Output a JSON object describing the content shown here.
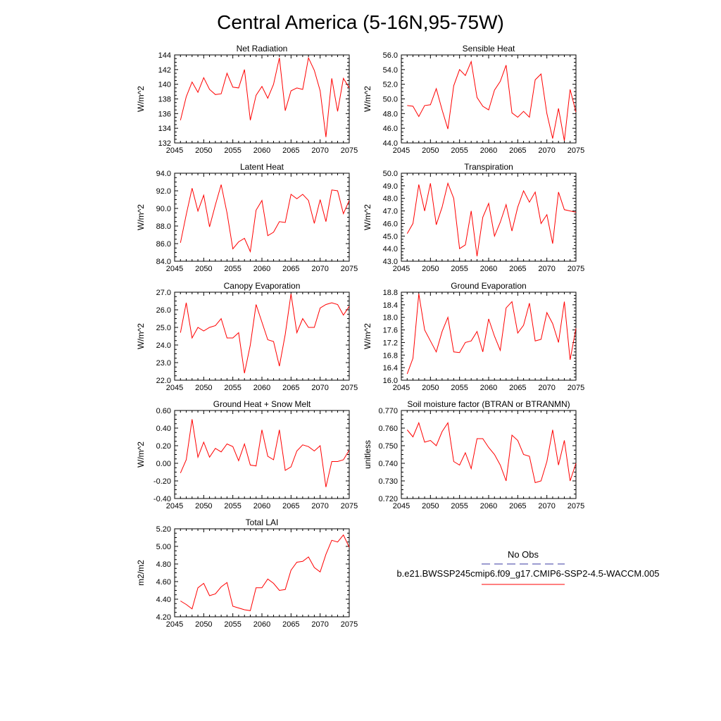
{
  "title": "Central America (5-16N,95-75W)",
  "colors": {
    "series": "#ff0000",
    "axis": "#000000",
    "obs": "#3a3aa0"
  },
  "legend": {
    "obs_label": "No Obs",
    "model_label": "b.e21.BWSSP245cmip6.f09_g17.CMIP6-SSP2-4.5-WACCM.005"
  },
  "chart_data": [
    {
      "type": "line",
      "title": "Net Radiation",
      "ylabel": "W/m^2",
      "xlim": [
        2045,
        2075
      ],
      "ylim": [
        132,
        144
      ],
      "xticks": [
        "2045",
        "2050",
        "2055",
        "2060",
        "2065",
        "2070",
        "2075"
      ],
      "yticks": [
        "132",
        "134",
        "136",
        "138",
        "140",
        "142",
        "144"
      ],
      "x": [
        2046,
        2047,
        2048,
        2049,
        2050,
        2051,
        2052,
        2053,
        2054,
        2055,
        2056,
        2057,
        2058,
        2059,
        2060,
        2061,
        2062,
        2063,
        2064,
        2065,
        2066,
        2067,
        2068,
        2069,
        2070,
        2071,
        2072,
        2073,
        2074,
        2075
      ],
      "y": [
        135.1,
        138.3,
        140.3,
        138.9,
        140.9,
        139.3,
        138.6,
        138.7,
        141.5,
        139.6,
        139.5,
        142.0,
        135.1,
        138.5,
        139.7,
        138.1,
        140.0,
        143.6,
        136.4,
        139.1,
        139.5,
        139.3,
        143.6,
        141.9,
        139.1,
        132.8,
        140.8,
        136.3,
        140.8,
        139.5
      ]
    },
    {
      "type": "line",
      "title": "Sensible Heat",
      "ylabel": "W/m^2",
      "xlim": [
        2045,
        2075
      ],
      "ylim": [
        44.0,
        56.0
      ],
      "xticks": [
        "2045",
        "2050",
        "2055",
        "2060",
        "2065",
        "2070",
        "2075"
      ],
      "yticks": [
        "44.0",
        "46.0",
        "48.0",
        "50.0",
        "52.0",
        "54.0",
        "56.0"
      ],
      "x": [
        2046,
        2047,
        2048,
        2049,
        2050,
        2051,
        2052,
        2053,
        2054,
        2055,
        2056,
        2057,
        2058,
        2059,
        2060,
        2061,
        2062,
        2063,
        2064,
        2065,
        2066,
        2067,
        2068,
        2069,
        2070,
        2071,
        2072,
        2073,
        2074,
        2075
      ],
      "y": [
        49.1,
        49.0,
        47.6,
        49.1,
        49.2,
        51.4,
        48.5,
        45.9,
        51.8,
        54.0,
        53.2,
        55.1,
        50.2,
        49.0,
        48.5,
        51.2,
        52.4,
        54.6,
        48.1,
        47.5,
        48.3,
        47.5,
        52.6,
        53.4,
        48.0,
        44.6,
        48.7,
        44.3,
        51.3,
        48.2
      ]
    },
    {
      "type": "line",
      "title": "Latent Heat",
      "ylabel": "W/m^2",
      "xlim": [
        2045,
        2075
      ],
      "ylim": [
        84.0,
        94.0
      ],
      "xticks": [
        "2045",
        "2050",
        "2055",
        "2060",
        "2065",
        "2070",
        "2075"
      ],
      "yticks": [
        "84.0",
        "86.0",
        "88.0",
        "90.0",
        "92.0",
        "94.0"
      ],
      "x": [
        2046,
        2047,
        2048,
        2049,
        2050,
        2051,
        2052,
        2053,
        2054,
        2055,
        2056,
        2057,
        2058,
        2059,
        2060,
        2061,
        2062,
        2063,
        2064,
        2065,
        2066,
        2067,
        2068,
        2069,
        2070,
        2071,
        2072,
        2073,
        2074,
        2075
      ],
      "y": [
        86.1,
        89.3,
        92.3,
        89.7,
        91.5,
        87.9,
        90.4,
        92.7,
        89.5,
        85.4,
        86.2,
        86.6,
        85.1,
        89.8,
        90.9,
        86.9,
        87.3,
        88.5,
        88.4,
        91.6,
        91.1,
        91.6,
        90.9,
        88.3,
        91.0,
        88.5,
        92.1,
        92.0,
        89.4,
        90.9
      ]
    },
    {
      "type": "line",
      "title": "Transpiration",
      "ylabel": "W/m^2",
      "xlim": [
        2045,
        2075
      ],
      "ylim": [
        43.0,
        50.0
      ],
      "xticks": [
        "2045",
        "2050",
        "2055",
        "2060",
        "2065",
        "2070",
        "2075"
      ],
      "yticks": [
        "43.0",
        "44.0",
        "45.0",
        "46.0",
        "47.0",
        "48.0",
        "49.0",
        "50.0"
      ],
      "x": [
        2046,
        2047,
        2048,
        2049,
        2050,
        2051,
        2052,
        2053,
        2054,
        2055,
        2056,
        2057,
        2058,
        2059,
        2060,
        2061,
        2062,
        2063,
        2064,
        2065,
        2066,
        2067,
        2068,
        2069,
        2070,
        2071,
        2072,
        2073,
        2074,
        2075
      ],
      "y": [
        45.2,
        46.0,
        49.1,
        47.0,
        49.2,
        45.9,
        47.3,
        49.2,
        48.0,
        44.0,
        44.3,
        47.0,
        43.4,
        46.5,
        47.6,
        45.0,
        46.1,
        47.5,
        45.4,
        47.3,
        48.6,
        47.7,
        48.5,
        46.0,
        46.7,
        44.4,
        48.5,
        47.1,
        47.0,
        46.9
      ]
    },
    {
      "type": "line",
      "title": "Canopy Evaporation",
      "ylabel": "W/m^2",
      "xlim": [
        2045,
        2075
      ],
      "ylim": [
        22.0,
        27.0
      ],
      "xticks": [
        "2045",
        "2050",
        "2055",
        "2060",
        "2065",
        "2070",
        "2075"
      ],
      "yticks": [
        "22.0",
        "23.0",
        "24.0",
        "25.0",
        "26.0",
        "27.0"
      ],
      "x": [
        2046,
        2047,
        2048,
        2049,
        2050,
        2051,
        2052,
        2053,
        2054,
        2055,
        2056,
        2057,
        2058,
        2059,
        2060,
        2061,
        2062,
        2063,
        2064,
        2065,
        2066,
        2067,
        2068,
        2069,
        2070,
        2071,
        2072,
        2073,
        2074,
        2075
      ],
      "y": [
        24.7,
        26.4,
        24.4,
        25.0,
        24.8,
        25.0,
        25.1,
        25.5,
        24.4,
        24.4,
        24.7,
        22.4,
        24.0,
        26.3,
        25.3,
        24.3,
        24.2,
        22.8,
        24.6,
        26.9,
        24.7,
        25.5,
        25.0,
        25.0,
        26.1,
        26.3,
        26.4,
        26.3,
        25.7,
        26.2
      ]
    },
    {
      "type": "line",
      "title": "Ground Evaporation",
      "ylabel": "W/m^2",
      "xlim": [
        2045,
        2075
      ],
      "ylim": [
        16.0,
        18.8
      ],
      "xticks": [
        "2045",
        "2050",
        "2055",
        "2060",
        "2065",
        "2070",
        "2075"
      ],
      "yticks": [
        "16.0",
        "16.4",
        "16.8",
        "17.2",
        "17.6",
        "18.0",
        "18.4",
        "18.8"
      ],
      "x": [
        2046,
        2047,
        2048,
        2049,
        2050,
        2051,
        2052,
        2053,
        2054,
        2055,
        2056,
        2057,
        2058,
        2059,
        2060,
        2061,
        2062,
        2063,
        2064,
        2065,
        2066,
        2067,
        2068,
        2069,
        2070,
        2071,
        2072,
        2073,
        2074,
        2075
      ],
      "y": [
        16.2,
        16.7,
        18.75,
        17.6,
        17.25,
        16.9,
        17.55,
        18.0,
        16.9,
        16.88,
        17.2,
        17.25,
        17.55,
        16.9,
        17.95,
        17.4,
        16.95,
        18.3,
        18.5,
        17.5,
        17.75,
        18.45,
        17.25,
        17.3,
        18.15,
        17.8,
        17.2,
        18.5,
        16.65,
        17.65
      ]
    },
    {
      "type": "line",
      "title": "Ground Heat + Snow Melt",
      "ylabel": "W/m^2",
      "xlim": [
        2045,
        2075
      ],
      "ylim": [
        -0.4,
        0.6
      ],
      "xticks": [
        "2045",
        "2050",
        "2055",
        "2060",
        "2065",
        "2070",
        "2075"
      ],
      "yticks": [
        "-0.40",
        "-0.20",
        "0.00",
        "0.20",
        "0.40",
        "0.60"
      ],
      "x": [
        2046,
        2047,
        2048,
        2049,
        2050,
        2051,
        2052,
        2053,
        2054,
        2055,
        2056,
        2057,
        2058,
        2059,
        2060,
        2061,
        2062,
        2063,
        2064,
        2065,
        2066,
        2067,
        2068,
        2069,
        2070,
        2071,
        2072,
        2073,
        2074,
        2075
      ],
      "y": [
        -0.11,
        0.04,
        0.5,
        0.07,
        0.24,
        0.07,
        0.17,
        0.13,
        0.22,
        0.19,
        0.03,
        0.22,
        -0.02,
        -0.03,
        0.38,
        0.08,
        0.04,
        0.38,
        -0.08,
        -0.04,
        0.14,
        0.21,
        0.19,
        0.14,
        0.2,
        -0.27,
        0.02,
        0.02,
        0.04,
        0.15
      ]
    },
    {
      "type": "line",
      "title": "Soil moisture factor (BTRAN or BTRANMN)",
      "ylabel": "unitless",
      "xlim": [
        2045,
        2075
      ],
      "ylim": [
        0.72,
        0.77
      ],
      "xticks": [
        "2045",
        "2050",
        "2055",
        "2060",
        "2065",
        "2070",
        "2075"
      ],
      "yticks": [
        "0.720",
        "0.730",
        "0.740",
        "0.750",
        "0.760",
        "0.770"
      ],
      "x": [
        2046,
        2047,
        2048,
        2049,
        2050,
        2051,
        2052,
        2053,
        2054,
        2055,
        2056,
        2057,
        2058,
        2059,
        2060,
        2061,
        2062,
        2063,
        2064,
        2065,
        2066,
        2067,
        2068,
        2069,
        2070,
        2071,
        2072,
        2073,
        2074,
        2075
      ],
      "y": [
        0.759,
        0.755,
        0.763,
        0.752,
        0.753,
        0.75,
        0.758,
        0.763,
        0.741,
        0.739,
        0.746,
        0.737,
        0.754,
        0.754,
        0.749,
        0.745,
        0.739,
        0.73,
        0.756,
        0.753,
        0.745,
        0.744,
        0.729,
        0.73,
        0.741,
        0.759,
        0.739,
        0.753,
        0.73,
        0.74
      ]
    },
    {
      "type": "line",
      "title": "Total LAI",
      "ylabel": "m2/m2",
      "xlim": [
        2045,
        2075
      ],
      "ylim": [
        4.2,
        5.2
      ],
      "xticks": [
        "2045",
        "2050",
        "2055",
        "2060",
        "2065",
        "2070",
        "2075"
      ],
      "yticks": [
        "4.20",
        "4.40",
        "4.60",
        "4.80",
        "5.00",
        "5.20"
      ],
      "x": [
        2046,
        2047,
        2048,
        2049,
        2050,
        2051,
        2052,
        2053,
        2054,
        2055,
        2056,
        2057,
        2058,
        2059,
        2060,
        2061,
        2062,
        2063,
        2064,
        2065,
        2066,
        2067,
        2068,
        2069,
        2070,
        2071,
        2072,
        2073,
        2074,
        2075
      ],
      "y": [
        4.38,
        4.34,
        4.29,
        4.53,
        4.58,
        4.44,
        4.46,
        4.54,
        4.59,
        4.32,
        4.3,
        4.28,
        4.27,
        4.53,
        4.53,
        4.63,
        4.58,
        4.5,
        4.51,
        4.73,
        4.82,
        4.83,
        4.88,
        4.76,
        4.71,
        4.91,
        5.07,
        5.05,
        5.13,
        4.99
      ]
    }
  ]
}
